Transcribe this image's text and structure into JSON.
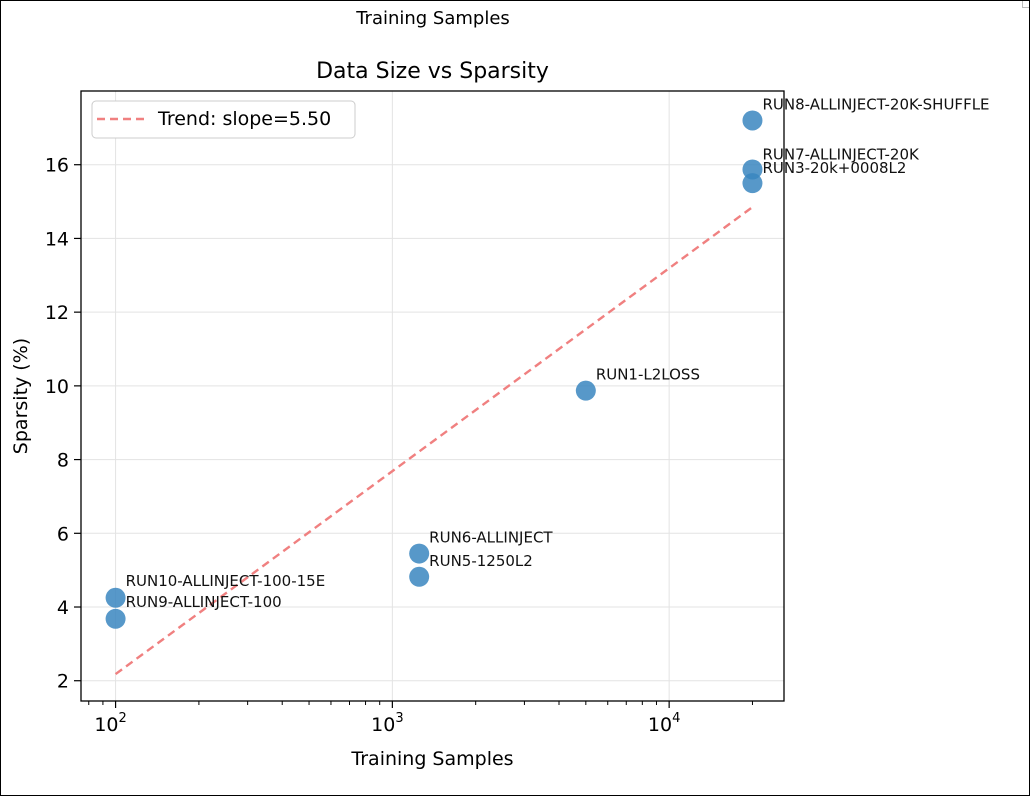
{
  "window": {
    "top_heading": "Training Samples"
  },
  "colors": {
    "point": "#3a86c0",
    "trend": "#f08080",
    "grid": "#e3e3e3",
    "axis": "#000000"
  },
  "chart_data": {
    "type": "scatter",
    "title": "Data Size vs Sparsity",
    "xlabel": "Training Samples",
    "ylabel": "Sparsity (%)",
    "xscale": "log",
    "xlim": [
      75,
      26000
    ],
    "ylim": [
      1.45,
      18.0
    ],
    "grid": true,
    "legend_position": "upper-left",
    "x_ticks": [
      {
        "value": 100,
        "base": "10",
        "exp": "2"
      },
      {
        "value": 1000,
        "base": "10",
        "exp": "3"
      },
      {
        "value": 10000,
        "base": "10",
        "exp": "4"
      }
    ],
    "y_ticks": [
      2,
      4,
      6,
      8,
      10,
      12,
      14,
      16
    ],
    "points": [
      {
        "label": "RUN10-ALLINJECT-100-15E",
        "x": 100,
        "y": 4.25
      },
      {
        "label": "RUN9-ALLINJECT-100",
        "x": 100,
        "y": 3.68
      },
      {
        "label": "RUN6-ALLINJECT",
        "x": 1250,
        "y": 5.45
      },
      {
        "label": "RUN5-1250L2",
        "x": 1250,
        "y": 4.82
      },
      {
        "label": "RUN1-L2LOSS",
        "x": 5000,
        "y": 9.87
      },
      {
        "label": "RUN8-ALLINJECT-20K-SHUFFLE",
        "x": 20000,
        "y": 17.2
      },
      {
        "label": "RUN7-ALLINJECT-20K",
        "x": 20000,
        "y": 15.87
      },
      {
        "label": "RUN3-20k+0008L2",
        "x": 20000,
        "y": 15.5
      }
    ],
    "trend": {
      "label": "Trend: slope=5.50",
      "slope": 5.5,
      "x_start": 100,
      "y_start": 2.18,
      "x_end": 20000,
      "y_end": 14.85
    }
  }
}
